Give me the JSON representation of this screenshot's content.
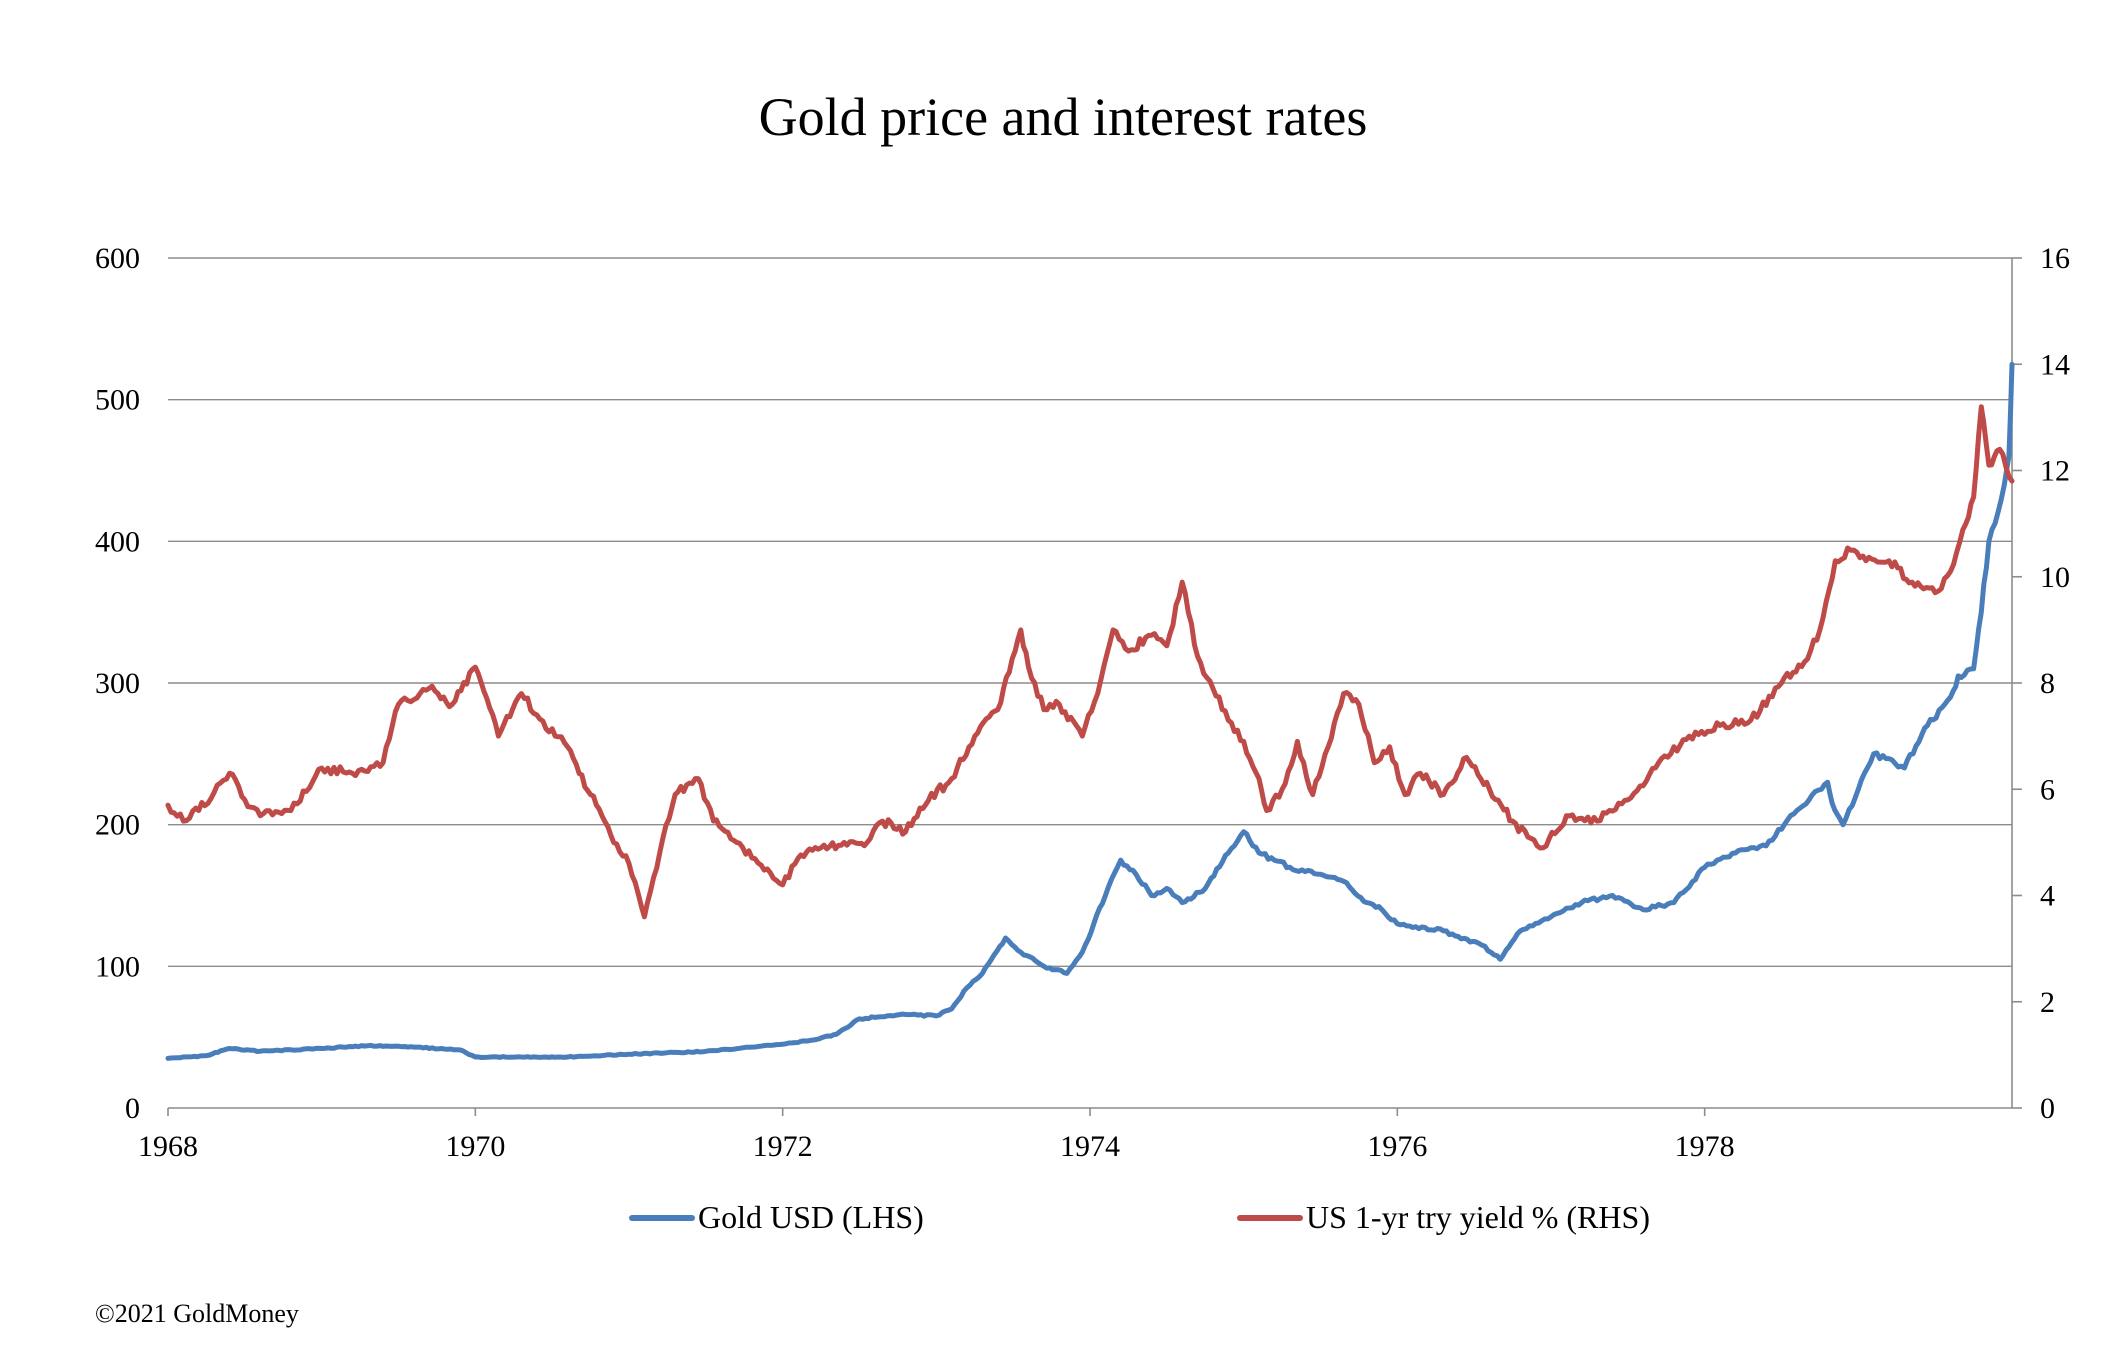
{
  "chart_data": {
    "type": "line",
    "title": "Gold price and interest rates",
    "x_ticks": [
      "1968",
      "1970",
      "1972",
      "1974",
      "1976",
      "1978"
    ],
    "xlim": [
      1968,
      1980
    ],
    "y_left": {
      "ticks": [
        "0",
        "100",
        "200",
        "300",
        "400",
        "500",
        "600"
      ],
      "lim": [
        0,
        600
      ]
    },
    "y_right": {
      "ticks": [
        "0",
        "2",
        "4",
        "6",
        "8",
        "10",
        "12",
        "14",
        "16"
      ],
      "lim": [
        0,
        16
      ]
    },
    "grid": true,
    "legend_position": "bottom",
    "series": [
      {
        "name": "Gold USD (LHS)",
        "axis": "left",
        "color": "#4a7ebb",
        "x": [
          1968.0,
          1968.25,
          1968.4,
          1968.6,
          1969.0,
          1969.3,
          1969.6,
          1969.9,
          1970.0,
          1970.3,
          1970.6,
          1971.0,
          1971.5,
          1971.8,
          1972.0,
          1972.2,
          1972.35,
          1972.5,
          1972.8,
          1973.0,
          1973.1,
          1973.2,
          1973.3,
          1973.45,
          1973.55,
          1973.7,
          1973.85,
          1973.95,
          1974.1,
          1974.2,
          1974.3,
          1974.4,
          1974.5,
          1974.6,
          1974.75,
          1974.9,
          1975.0,
          1975.1,
          1975.3,
          1975.5,
          1975.65,
          1975.8,
          1975.9,
          1976.0,
          1976.3,
          1976.55,
          1976.67,
          1976.8,
          1977.0,
          1977.2,
          1977.4,
          1977.6,
          1977.8,
          1978.0,
          1978.2,
          1978.4,
          1978.6,
          1978.8,
          1978.83,
          1978.9,
          1979.0,
          1979.1,
          1979.3,
          1979.45,
          1979.6,
          1979.65,
          1979.75,
          1979.8,
          1979.85,
          1979.95,
          1979.98,
          1980.0
        ],
        "y": [
          35,
          37,
          42,
          40,
          42,
          44,
          43,
          41,
          36,
          36,
          36,
          38,
          40,
          43,
          45,
          48,
          52,
          63,
          66,
          65,
          70,
          85,
          95,
          120,
          110,
          100,
          95,
          110,
          150,
          175,
          165,
          150,
          155,
          145,
          155,
          180,
          195,
          180,
          170,
          165,
          160,
          145,
          140,
          130,
          125,
          115,
          105,
          125,
          135,
          145,
          150,
          140,
          145,
          170,
          180,
          185,
          210,
          230,
          215,
          200,
          225,
          250,
          240,
          270,
          290,
          305,
          310,
          350,
          400,
          440,
          460,
          525
        ]
      },
      {
        "name": "US 1-yr try yield % (RHS)",
        "axis": "right",
        "color": "#be4b48",
        "x": [
          1968.0,
          1968.1,
          1968.2,
          1968.4,
          1968.5,
          1968.6,
          1968.8,
          1969.0,
          1969.2,
          1969.4,
          1969.5,
          1969.7,
          1969.85,
          1970.0,
          1970.15,
          1970.3,
          1970.4,
          1970.6,
          1970.75,
          1970.9,
          1971.0,
          1971.1,
          1971.2,
          1971.3,
          1971.45,
          1971.55,
          1971.7,
          1971.9,
          1972.0,
          1972.1,
          1972.25,
          1972.4,
          1972.55,
          1972.65,
          1972.8,
          1972.95,
          1973.1,
          1973.25,
          1973.4,
          1973.55,
          1973.6,
          1973.7,
          1973.8,
          1973.95,
          1974.05,
          1974.15,
          1974.25,
          1974.4,
          1974.5,
          1974.6,
          1974.7,
          1974.8,
          1974.9,
          1975.0,
          1975.1,
          1975.15,
          1975.25,
          1975.35,
          1975.45,
          1975.55,
          1975.65,
          1975.75,
          1975.85,
          1975.95,
          1976.05,
          1976.15,
          1976.3,
          1976.45,
          1976.6,
          1976.75,
          1976.85,
          1976.95,
          1977.1,
          1977.3,
          1977.5,
          1977.7,
          1977.9,
          1978.1,
          1978.3,
          1978.5,
          1978.65,
          1978.75,
          1978.85,
          1978.95,
          1979.05,
          1979.2,
          1979.35,
          1979.5,
          1979.6,
          1979.7,
          1979.75,
          1979.8,
          1979.85,
          1979.92,
          1980.0
        ],
        "y": [
          5.7,
          5.4,
          5.6,
          6.3,
          5.8,
          5.5,
          5.6,
          6.4,
          6.3,
          6.5,
          7.6,
          7.9,
          7.6,
          8.3,
          7.0,
          7.8,
          7.4,
          6.8,
          5.9,
          5.0,
          4.6,
          3.6,
          4.8,
          5.9,
          6.2,
          5.4,
          5.0,
          4.5,
          4.2,
          4.7,
          4.9,
          5.0,
          5.0,
          5.4,
          5.2,
          5.8,
          6.2,
          7.0,
          7.5,
          9.0,
          8.3,
          7.5,
          7.6,
          7.0,
          7.8,
          9.0,
          8.6,
          8.9,
          8.7,
          9.9,
          8.5,
          7.9,
          7.3,
          6.9,
          6.2,
          5.6,
          6.0,
          6.9,
          5.9,
          6.8,
          7.8,
          7.6,
          6.5,
          6.8,
          5.9,
          6.3,
          5.9,
          6.6,
          6.0,
          5.4,
          5.1,
          4.9,
          5.5,
          5.4,
          5.8,
          6.5,
          7.0,
          7.2,
          7.3,
          8.0,
          8.4,
          9.0,
          10.3,
          10.5,
          10.3,
          10.3,
          9.9,
          9.7,
          10.1,
          11.0,
          11.5,
          13.2,
          12.1,
          12.4,
          11.8
        ]
      }
    ]
  },
  "footer": {
    "copyright": "©2021 GoldMoney"
  }
}
